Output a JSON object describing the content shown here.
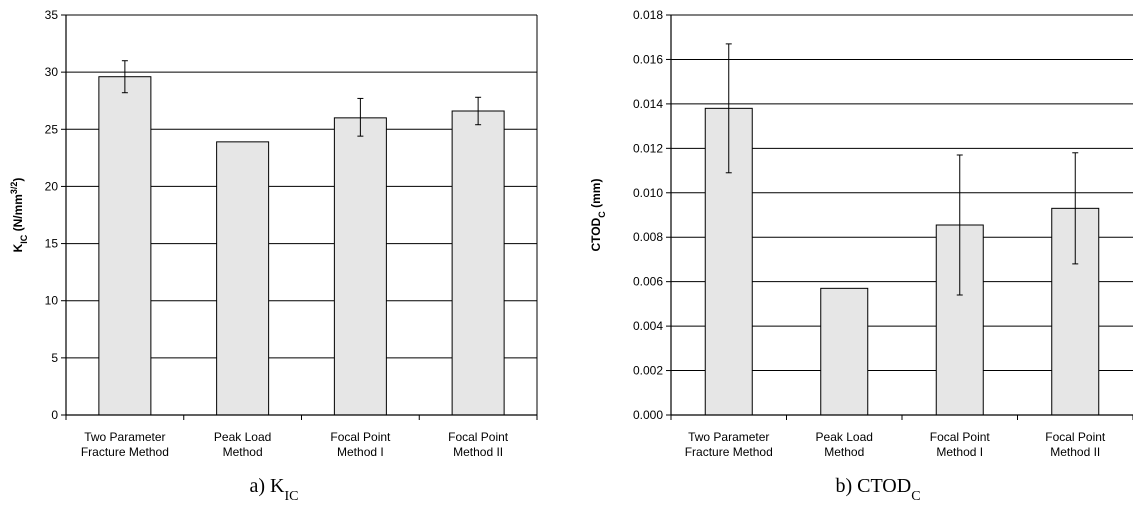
{
  "chart_data": [
    {
      "type": "bar",
      "caption": "a) K",
      "caption_sub": "IC",
      "ylabel": "K",
      "ylabel_sub": "IC",
      "ylabel_unit_pre": " (N/mm",
      "ylabel_unit_sup": "3/2",
      "ylabel_unit_post": ")",
      "ylim": [
        0,
        35
      ],
      "yticks": [
        0,
        5,
        10,
        15,
        20,
        25,
        30,
        35
      ],
      "ytick_labels": [
        "0",
        "5",
        "10",
        "15",
        "20",
        "25",
        "30",
        "35"
      ],
      "grid": true,
      "categories": [
        [
          "Two Parameter",
          "Fracture Method"
        ],
        [
          "Peak Load",
          "Method"
        ],
        [
          "Focal Point",
          "Method I"
        ],
        [
          "Focal Point",
          "Method II"
        ]
      ],
      "values": [
        29.6,
        23.9,
        26.0,
        26.6
      ],
      "error_low": [
        28.2,
        null,
        24.4,
        25.4
      ],
      "error_high": [
        31.0,
        null,
        27.7,
        27.8
      ],
      "bar_color": "#e6e6e6"
    },
    {
      "type": "bar",
      "caption": "b) CTOD",
      "caption_sub": "C",
      "ylabel": "CTOD",
      "ylabel_sub": "C",
      "ylabel_unit_pre": " (mm)",
      "ylabel_unit_sup": "",
      "ylabel_unit_post": "",
      "ylim": [
        0,
        0.018
      ],
      "yticks": [
        0,
        0.002,
        0.004,
        0.006,
        0.008,
        0.01,
        0.012,
        0.014,
        0.016,
        0.018
      ],
      "ytick_labels": [
        "0.000",
        "0.002",
        "0.004",
        "0.006",
        "0.008",
        "0.010",
        "0.012",
        "0.014",
        "0.016",
        "0.018"
      ],
      "grid": true,
      "categories": [
        [
          "Two Parameter",
          "Fracture Method"
        ],
        [
          "Peak Load",
          "Method"
        ],
        [
          "Focal Point",
          "Method I"
        ],
        [
          "Focal Point",
          "Method II"
        ]
      ],
      "values": [
        0.0138,
        0.0057,
        0.00855,
        0.0093
      ],
      "error_low": [
        0.0109,
        null,
        0.0054,
        0.0068
      ],
      "error_high": [
        0.0167,
        null,
        0.0117,
        0.0118
      ],
      "bar_color": "#e6e6e6"
    }
  ]
}
